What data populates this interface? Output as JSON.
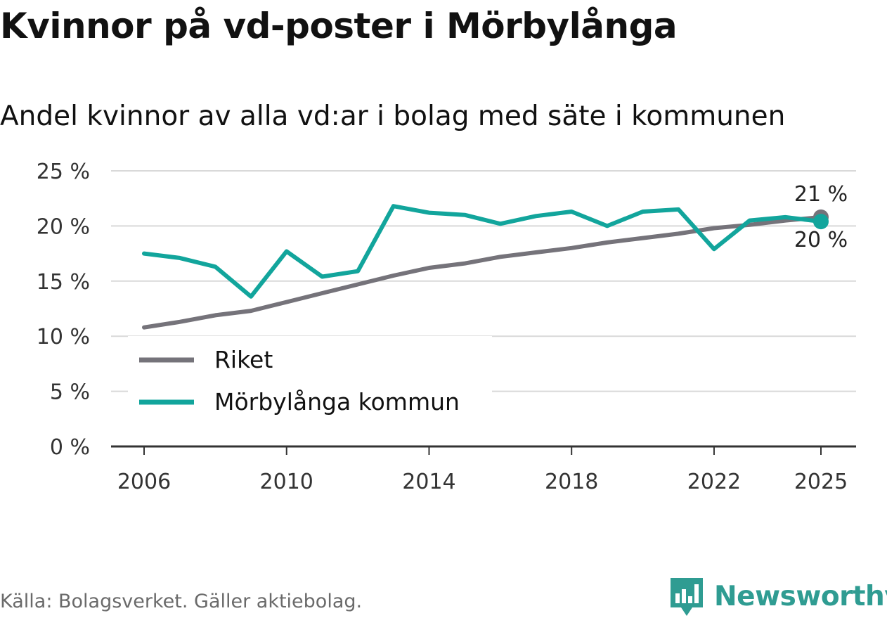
{
  "title": "Kvinnor på vd-poster i Mörbylånga",
  "subtitle": "Andel kvinnor av alla vd:ar i bolag med säte i kommunen",
  "source": "Källa: Bolagsverket. Gäller aktiebolag.",
  "brand": "Newsworthy",
  "colors": {
    "riket": "#75737a",
    "morbylanga": "#12a59c",
    "grid": "#d9d9d9",
    "axis": "#333333",
    "brand": "#2f9c92"
  },
  "chart_data": {
    "type": "line",
    "title": "Kvinnor på vd-poster i Mörbylånga",
    "subtitle": "Andel kvinnor av alla vd:ar i bolag med säte i kommunen",
    "xlabel": "",
    "ylabel": "",
    "xlim": [
      2006,
      2025
    ],
    "ylim": [
      0,
      25
    ],
    "x_ticks": [
      2006,
      2010,
      2014,
      2018,
      2022,
      2025
    ],
    "x_tick_labels": [
      "2006",
      "2010",
      "2014",
      "2018",
      "2022",
      "2025"
    ],
    "y_ticks": [
      0,
      5,
      10,
      15,
      20,
      25
    ],
    "y_tick_labels": [
      "0 %",
      "5 %",
      "10 %",
      "15 %",
      "20 %",
      "25 %"
    ],
    "grid": true,
    "legend_position": "bottom-left",
    "x": [
      2006,
      2007,
      2008,
      2009,
      2010,
      2011,
      2012,
      2013,
      2014,
      2015,
      2016,
      2017,
      2018,
      2019,
      2020,
      2021,
      2022,
      2023,
      2024,
      2025
    ],
    "series": [
      {
        "name": "Riket",
        "key": "riket",
        "values": [
          10.8,
          11.3,
          11.9,
          12.3,
          13.1,
          13.9,
          14.7,
          15.5,
          16.2,
          16.6,
          17.2,
          17.6,
          18.0,
          18.5,
          18.9,
          19.3,
          19.8,
          20.1,
          20.5,
          20.8
        ],
        "end_label": "21 %"
      },
      {
        "name": "Mörbylånga kommun",
        "key": "morbylanga",
        "values": [
          17.5,
          17.1,
          16.3,
          13.6,
          17.7,
          15.4,
          15.9,
          21.8,
          21.2,
          21.0,
          20.2,
          20.9,
          21.3,
          20.0,
          21.3,
          21.5,
          17.9,
          20.5,
          20.8,
          20.4
        ],
        "end_label": "20 %"
      }
    ]
  }
}
